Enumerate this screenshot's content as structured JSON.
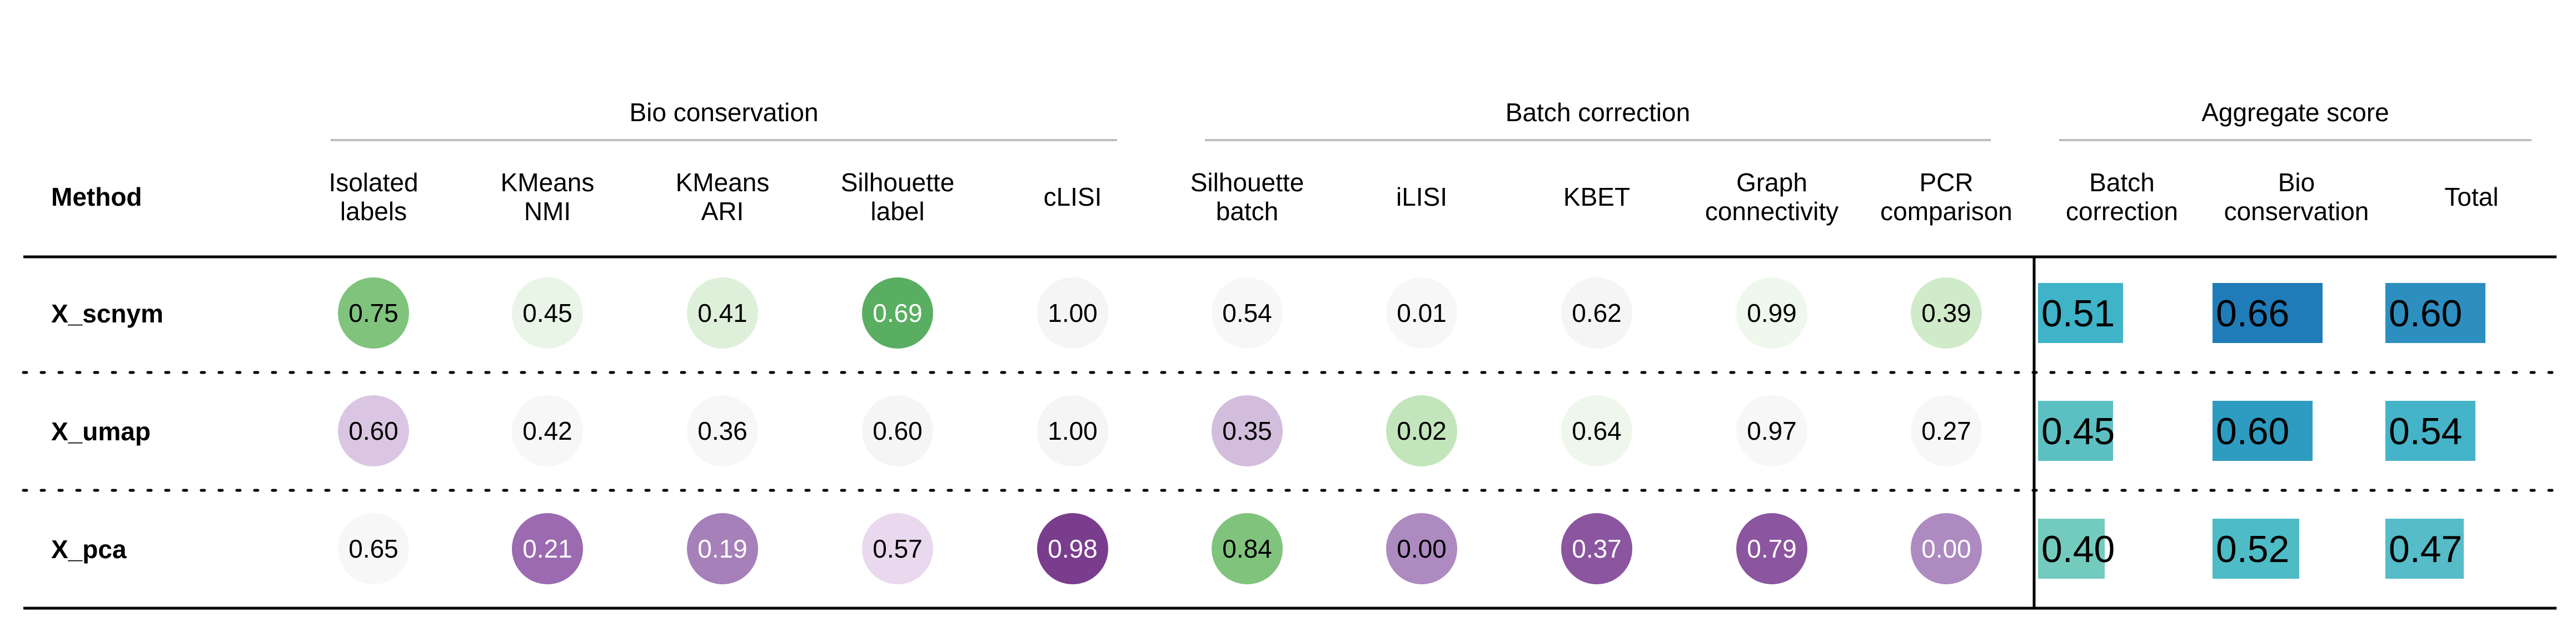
{
  "chart_data": {
    "type": "table",
    "title": "",
    "method_header": "Method",
    "groups": [
      {
        "name": "Bio conservation",
        "columns": [
          0,
          1,
          2,
          3,
          4
        ]
      },
      {
        "name": "Batch correction",
        "columns": [
          5,
          6,
          7,
          8,
          9
        ]
      },
      {
        "name": "Aggregate score",
        "columns": [
          10,
          11,
          12
        ]
      }
    ],
    "columns": [
      {
        "label": [
          "Isolated",
          "labels"
        ],
        "kind": "circle"
      },
      {
        "label": [
          "KMeans",
          "NMI"
        ],
        "kind": "circle"
      },
      {
        "label": [
          "KMeans",
          "ARI"
        ],
        "kind": "circle"
      },
      {
        "label": [
          "Silhouette",
          "label"
        ],
        "kind": "circle"
      },
      {
        "label": [
          "cLISI"
        ],
        "kind": "circle"
      },
      {
        "label": [
          "Silhouette",
          "batch"
        ],
        "kind": "circle"
      },
      {
        "label": [
          "iLISI"
        ],
        "kind": "circle"
      },
      {
        "label": [
          "KBET"
        ],
        "kind": "circle"
      },
      {
        "label": [
          "Graph",
          "connectivity"
        ],
        "kind": "circle"
      },
      {
        "label": [
          "PCR",
          "comparison"
        ],
        "kind": "circle"
      },
      {
        "label": [
          "Batch",
          "correction"
        ],
        "kind": "bar"
      },
      {
        "label": [
          "Bio",
          "conservation"
        ],
        "kind": "bar"
      },
      {
        "label": [
          "Total"
        ],
        "kind": "bar"
      }
    ],
    "rows": [
      {
        "method": "X_scnym",
        "labels": [
          "0.75",
          "0.45",
          "0.41",
          "0.69",
          "1.00",
          "0.54",
          "0.01",
          "0.62",
          "0.99",
          "0.39",
          "0.51",
          "0.66",
          "0.60"
        ],
        "values": [
          0.75,
          0.45,
          0.41,
          0.69,
          1.0,
          0.54,
          0.01,
          0.62,
          0.99,
          0.39,
          0.51,
          0.66,
          0.6
        ],
        "colors": [
          "#7fc37c",
          "#e9f5e6",
          "#def0da",
          "#5aae61",
          "#f5f5f5",
          "#f7f7f7",
          "#f7f7f7",
          "#f5f5f5",
          "#eff8ec",
          "#d0ebca",
          "#3fb3c7",
          "#1f7cb8",
          "#2d8fc0"
        ],
        "dark_text": [
          false,
          false,
          false,
          true,
          false,
          false,
          false,
          false,
          false,
          false,
          false,
          false,
          false
        ]
      },
      {
        "method": "X_umap",
        "labels": [
          "0.60",
          "0.42",
          "0.36",
          "0.60",
          "1.00",
          "0.35",
          "0.02",
          "0.64",
          "0.97",
          "0.27",
          "0.45",
          "0.60",
          "0.54"
        ],
        "values": [
          0.6,
          0.42,
          0.36,
          0.6,
          1.0,
          0.35,
          0.02,
          0.64,
          0.97,
          0.27,
          0.45,
          0.6,
          0.54
        ],
        "colors": [
          "#dac6e2",
          "#f7f7f7",
          "#f7f7f7",
          "#f5f5f5",
          "#f5f5f5",
          "#d3bddc",
          "#c2e5bb",
          "#eff7ec",
          "#f7f7f7",
          "#f7f7f7",
          "#5cc0c2",
          "#2d9cc0",
          "#45b4c8"
        ],
        "dark_text": [
          false,
          false,
          false,
          false,
          false,
          false,
          false,
          false,
          false,
          false,
          false,
          false,
          false
        ]
      },
      {
        "method": "X_pca",
        "labels": [
          "0.65",
          "0.21",
          "0.19",
          "0.57",
          "0.98",
          "0.84",
          "0.00",
          "0.37",
          "0.79",
          "0.00",
          "0.40",
          "0.52",
          "0.47"
        ],
        "values": [
          0.65,
          0.21,
          0.19,
          0.57,
          0.98,
          0.84,
          0.0,
          0.37,
          0.79,
          0.0,
          0.4,
          0.52,
          0.47
        ],
        "colors": [
          "#f7f7f7",
          "#9b6ab0",
          "#a680b9",
          "#ead8ee",
          "#7a3d8e",
          "#7fc37c",
          "#ad8ac0",
          "#8b55a0",
          "#8b55a0",
          "#ad8ac0",
          "#73cbbd",
          "#4dbcc6",
          "#55bcc8"
        ],
        "dark_text": [
          false,
          true,
          true,
          false,
          true,
          false,
          false,
          true,
          true,
          true,
          false,
          false,
          false
        ]
      }
    ]
  }
}
